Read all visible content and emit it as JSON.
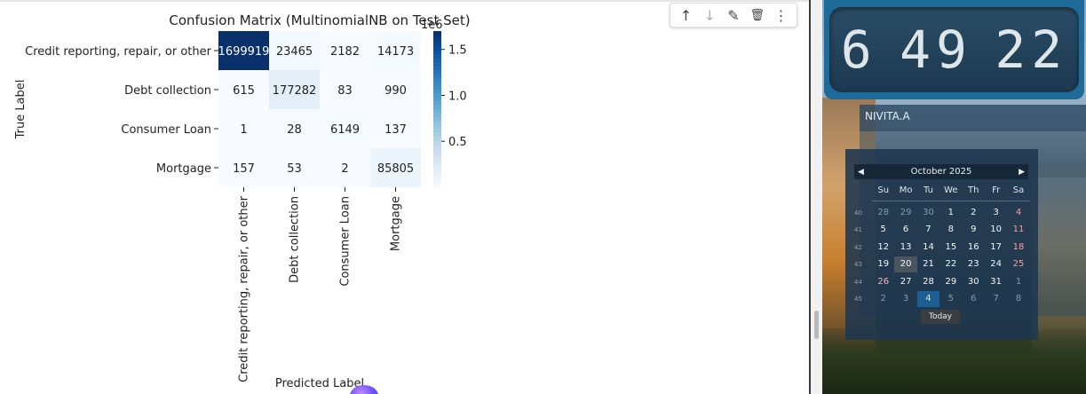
{
  "notebook": {
    "toolbar": {
      "move_up_icon": "↑",
      "move_down_icon": "↓",
      "edit_icon": "✎",
      "delete_icon": "🗑",
      "more_icon": "⋮"
    }
  },
  "chart_data": {
    "type": "heatmap",
    "title": "Confusion Matrix (MultinomialNB on Test Set)",
    "xlabel": "Predicted Label",
    "ylabel": "True Label",
    "x_categories": [
      "Credit reporting, repair, or other",
      "Debt collection",
      "Consumer Loan",
      "Mortgage"
    ],
    "y_categories": [
      "Credit reporting, repair, or other",
      "Debt collection",
      "Consumer Loan",
      "Mortgage"
    ],
    "values": [
      [
        1699919,
        23465,
        2182,
        14173
      ],
      [
        615,
        177282,
        83,
        990
      ],
      [
        1,
        28,
        6149,
        137
      ],
      [
        157,
        53,
        2,
        85805
      ]
    ],
    "colorbar": {
      "label": "1e6",
      "ticks": [
        "1.5",
        "1.0",
        "0.5"
      ],
      "tick_values": [
        1.5,
        1.0,
        0.5
      ],
      "range": [
        0,
        1.7
      ],
      "colormap": "Blues"
    }
  },
  "desktop": {
    "clock": {
      "hours": "6",
      "minutes": "49",
      "seconds": "22"
    },
    "user": "NIVITA.A",
    "calendar": {
      "month_label": "October 2025",
      "prev_icon": "◀",
      "next_icon": "▶",
      "weekdays": [
        "Su",
        "Mo",
        "Tu",
        "We",
        "Th",
        "Fr",
        "Sa"
      ],
      "weeks": [
        {
          "wk": "40",
          "days": [
            "28",
            "29",
            "30",
            "1",
            "2",
            "3",
            "4"
          ]
        },
        {
          "wk": "41",
          "days": [
            "5",
            "6",
            "7",
            "8",
            "9",
            "10",
            "11"
          ]
        },
        {
          "wk": "42",
          "days": [
            "12",
            "13",
            "14",
            "15",
            "16",
            "17",
            "18"
          ]
        },
        {
          "wk": "43",
          "days": [
            "19",
            "20",
            "21",
            "22",
            "23",
            "24",
            "25"
          ]
        },
        {
          "wk": "44",
          "days": [
            "26",
            "27",
            "28",
            "29",
            "30",
            "31",
            "1"
          ]
        },
        {
          "wk": "45",
          "days": [
            "2",
            "3",
            "4",
            "5",
            "6",
            "7",
            "8"
          ]
        }
      ],
      "today_label": "Today"
    }
  }
}
